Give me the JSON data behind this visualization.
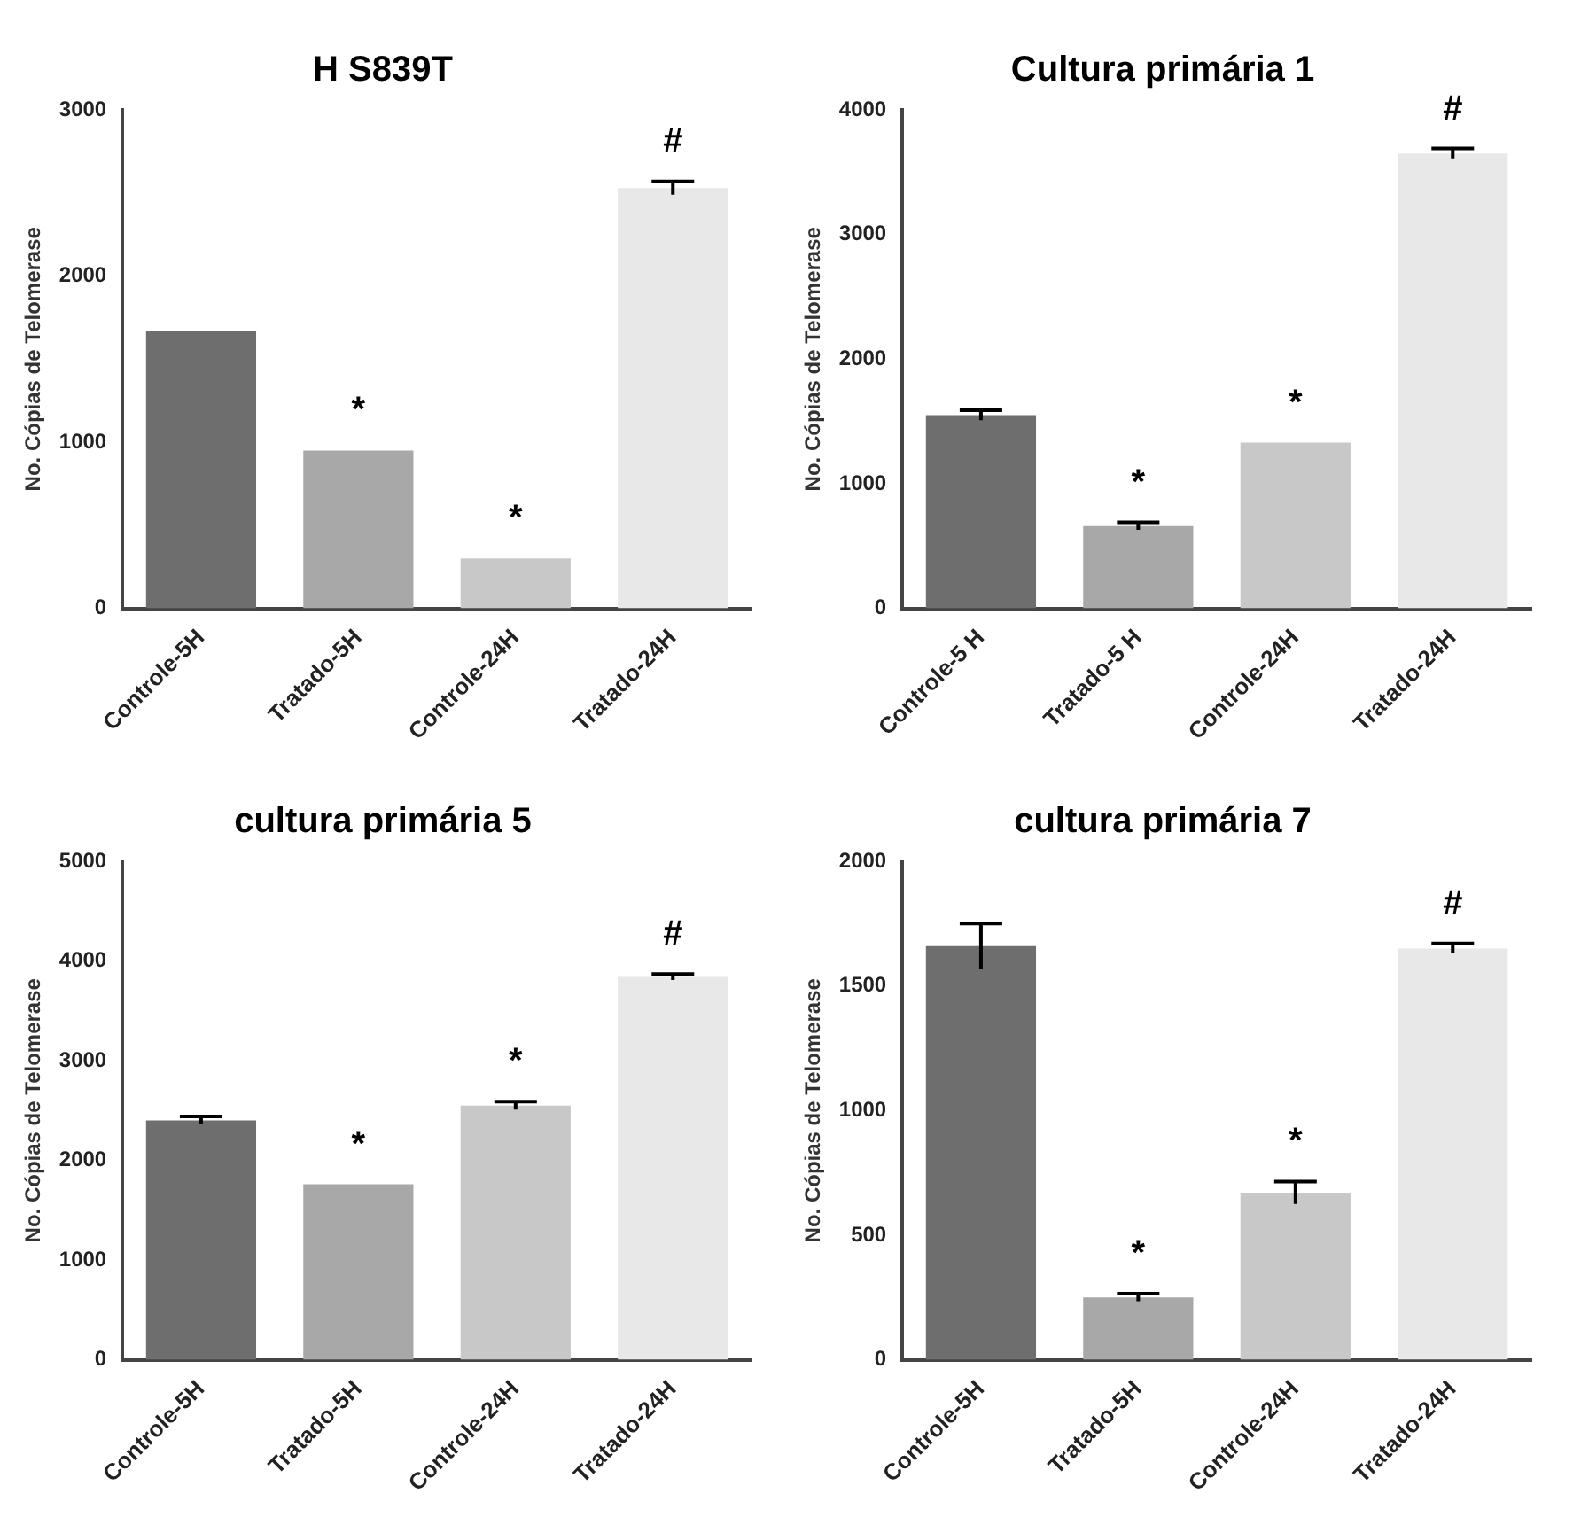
{
  "chart_data": [
    {
      "type": "bar",
      "title": "H S839T",
      "ylabel": "No. Cópias de Telomerase",
      "categories": [
        "Controle-5H",
        "Tratado-5H",
        "Controle-24H",
        "Tratado-24H"
      ],
      "values": [
        1670,
        950,
        300,
        2530
      ],
      "errors": [
        null,
        null,
        null,
        40
      ],
      "colors": [
        "#6e6e6e",
        "#a8a8a8",
        "#c8c8c8",
        "#e8e8e8"
      ],
      "ylim": [
        0,
        3000
      ],
      "yticks": [
        0,
        1000,
        2000,
        3000
      ],
      "grid": false,
      "legend": false,
      "annotations": [
        {
          "text": "*",
          "x": "Tratado-5H",
          "y": 950
        },
        {
          "text": "*",
          "x": "Controle-24H",
          "y": 300
        },
        {
          "text": "#",
          "x": "Tratado-24H",
          "y": 2530
        }
      ]
    },
    {
      "type": "bar",
      "title": "Cultura primária 1",
      "ylabel": "No. Cópias de Telomerase",
      "categories": [
        "Controle-5 H",
        "Tratado-5 H",
        "Controle-24H",
        "Tratado-24H"
      ],
      "values": [
        1550,
        660,
        1330,
        3650
      ],
      "errors": [
        40,
        30,
        null,
        40
      ],
      "colors": [
        "#6e6e6e",
        "#a8a8a8",
        "#c8c8c8",
        "#e8e8e8"
      ],
      "ylim": [
        0,
        4000
      ],
      "yticks": [
        0,
        1000,
        2000,
        3000,
        4000
      ],
      "grid": false,
      "legend": false,
      "annotations": [
        {
          "text": "*",
          "x": "Tratado-5 H",
          "y": 660
        },
        {
          "text": "*",
          "x": "Controle-24H",
          "y": 1330
        },
        {
          "text": "#",
          "x": "Tratado-24H",
          "y": 3650
        }
      ]
    },
    {
      "type": "bar",
      "title": "cultura primária 5",
      "ylabel": "No. Cópias de Telomerase",
      "categories": [
        "Controle-5H",
        "Tratado-5H",
        "Controle-24H",
        "Tratado-24H"
      ],
      "values": [
        2400,
        1760,
        2550,
        3840
      ],
      "errors": [
        40,
        null,
        40,
        30
      ],
      "colors": [
        "#6e6e6e",
        "#a8a8a8",
        "#c8c8c8",
        "#e8e8e8"
      ],
      "ylim": [
        0,
        5000
      ],
      "yticks": [
        0,
        1000,
        2000,
        3000,
        4000,
        5000
      ],
      "grid": false,
      "legend": false,
      "annotations": [
        {
          "text": "*",
          "x": "Tratado-5H",
          "y": 1760
        },
        {
          "text": "*",
          "x": "Controle-24H",
          "y": 2550
        },
        {
          "text": "#",
          "x": "Tratado-24H",
          "y": 3840
        }
      ]
    },
    {
      "type": "bar",
      "title": "cultura primária 7",
      "ylabel": "No. Cópias de Telomerase",
      "categories": [
        "Controle-5H",
        "Tratado-5H",
        "Controle-24H",
        "Tratado-24H"
      ],
      "values": [
        1660,
        250,
        670,
        1650
      ],
      "errors": [
        90,
        15,
        45,
        20
      ],
      "colors": [
        "#6e6e6e",
        "#a8a8a8",
        "#c8c8c8",
        "#e8e8e8"
      ],
      "ylim": [
        0,
        2000
      ],
      "yticks": [
        0,
        500,
        1000,
        1500,
        2000
      ],
      "grid": false,
      "legend": false,
      "annotations": [
        {
          "text": "*",
          "x": "Tratado-5H",
          "y": 250
        },
        {
          "text": "*",
          "x": "Controle-24H",
          "y": 670
        },
        {
          "text": "#",
          "x": "Tratado-24H",
          "y": 1650
        }
      ]
    }
  ]
}
